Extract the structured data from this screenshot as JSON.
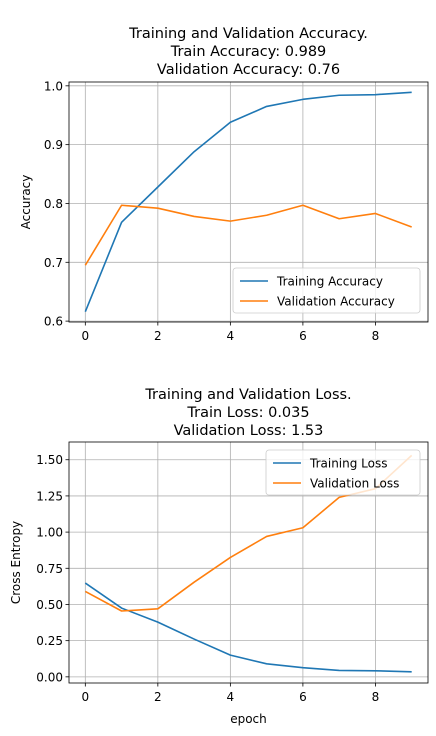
{
  "chart_data": [
    {
      "type": "line",
      "title_lines": [
        "Training and Validation Accuracy.",
        "Train Accuracy: 0.989",
        "Validation Accuracy: 0.76"
      ],
      "xlabel": "",
      "ylabel": "Accuracy",
      "xlim": [
        -0.45,
        9.45
      ],
      "ylim": [
        0.5985,
        1.0065
      ],
      "xticks": [
        0,
        2,
        4,
        6,
        8
      ],
      "yticks": [
        0.6,
        0.7,
        0.8,
        0.9,
        1.0
      ],
      "ytick_labels": [
        "0.6",
        "0.7",
        "0.8",
        "0.9",
        "1.0"
      ],
      "grid": true,
      "legend_position": "lower-right",
      "x": [
        0,
        1,
        2,
        3,
        4,
        5,
        6,
        7,
        8,
        9
      ],
      "series": [
        {
          "name": "Training Accuracy",
          "color": "#1f77b4",
          "values": [
            0.616,
            0.768,
            0.828,
            0.888,
            0.938,
            0.965,
            0.977,
            0.984,
            0.985,
            0.989
          ]
        },
        {
          "name": "Validation Accuracy",
          "color": "#ff7f0e",
          "values": [
            0.695,
            0.797,
            0.792,
            0.778,
            0.77,
            0.78,
            0.797,
            0.774,
            0.783,
            0.76
          ]
        }
      ]
    },
    {
      "type": "line",
      "title_lines": [
        "Training and Validation Loss.",
        "Train Loss: 0.035",
        "Validation Loss: 1.53"
      ],
      "xlabel": "epoch",
      "ylabel": "Cross Entropy",
      "xlim": [
        -0.45,
        9.45
      ],
      "ylim": [
        -0.0425,
        1.6225
      ],
      "xticks": [
        0,
        2,
        4,
        6,
        8
      ],
      "yticks": [
        0.0,
        0.25,
        0.5,
        0.75,
        1.0,
        1.25,
        1.5
      ],
      "ytick_labels": [
        "0.00",
        "0.25",
        "0.50",
        "0.75",
        "1.00",
        "1.25",
        "1.50"
      ],
      "grid": true,
      "legend_position": "upper-right",
      "x": [
        0,
        1,
        2,
        3,
        4,
        5,
        6,
        7,
        8,
        9
      ],
      "series": [
        {
          "name": "Training Loss",
          "color": "#1f77b4",
          "values": [
            0.648,
            0.475,
            0.378,
            0.261,
            0.15,
            0.09,
            0.063,
            0.044,
            0.042,
            0.035
          ]
        },
        {
          "name": "Validation Loss",
          "color": "#ff7f0e",
          "values": [
            0.59,
            0.455,
            0.47,
            0.654,
            0.825,
            0.97,
            1.03,
            1.24,
            1.3,
            1.53
          ]
        }
      ]
    }
  ]
}
